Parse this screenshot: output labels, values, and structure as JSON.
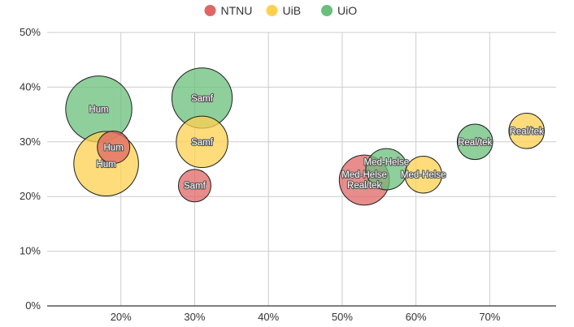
{
  "chart_data": {
    "type": "scatter",
    "variant": "bubble",
    "title": "",
    "xlabel": "",
    "ylabel": "",
    "xlim": [
      0.1,
      0.79
    ],
    "ylim": [
      0,
      0.5
    ],
    "x_ticks": [
      0.2,
      0.3,
      0.4,
      0.5,
      0.6,
      0.7
    ],
    "y_ticks": [
      0,
      0.1,
      0.2,
      0.3,
      0.4,
      0.5
    ],
    "x_tick_labels": [
      "20%",
      "30%",
      "40%",
      "50%",
      "60%",
      "70%"
    ],
    "y_tick_labels": [
      "0%",
      "10%",
      "20%",
      "30%",
      "40%",
      "50%"
    ],
    "grid": true,
    "legend_position": "top-center",
    "series": [
      {
        "name": "NTNU",
        "color": "#e06666",
        "points": [
          {
            "label": "Hum",
            "x": 0.19,
            "y": 0.29,
            "size": 1.0
          },
          {
            "label": "Samf",
            "x": 0.3,
            "y": 0.22,
            "size": 1.0
          },
          {
            "label": "Med-Helse",
            "x": 0.53,
            "y": 0.23,
            "size": 2.2
          }
        ]
      },
      {
        "name": "UiB",
        "color": "#ffd04f",
        "points": [
          {
            "label": "Hum",
            "x": 0.18,
            "y": 0.26,
            "size": 3.2
          },
          {
            "label": "Samf",
            "x": 0.31,
            "y": 0.3,
            "size": 2.3
          },
          {
            "label": "Med-Helse",
            "x": 0.61,
            "y": 0.24,
            "size": 1.3
          },
          {
            "label": "Real/tek",
            "x": 0.75,
            "y": 0.32,
            "size": 1.2
          }
        ]
      },
      {
        "name": "UiO",
        "color": "#6abf7b",
        "points": [
          {
            "label": "Hum",
            "x": 0.17,
            "y": 0.36,
            "size": 3.3
          },
          {
            "label": "Samf",
            "x": 0.31,
            "y": 0.38,
            "size": 2.9
          },
          {
            "label": "Med-Helse",
            "x": 0.56,
            "y": 0.25,
            "size": 1.6
          },
          {
            "label": "Real/tek",
            "x": 0.68,
            "y": 0.3,
            "size": 1.2
          }
        ]
      },
      {
        "name": "",
        "color": "#e06666",
        "points": [
          {
            "label": "Real/tek",
            "x": 0.53,
            "y": 0.23,
            "size": 0
          }
        ]
      }
    ]
  }
}
